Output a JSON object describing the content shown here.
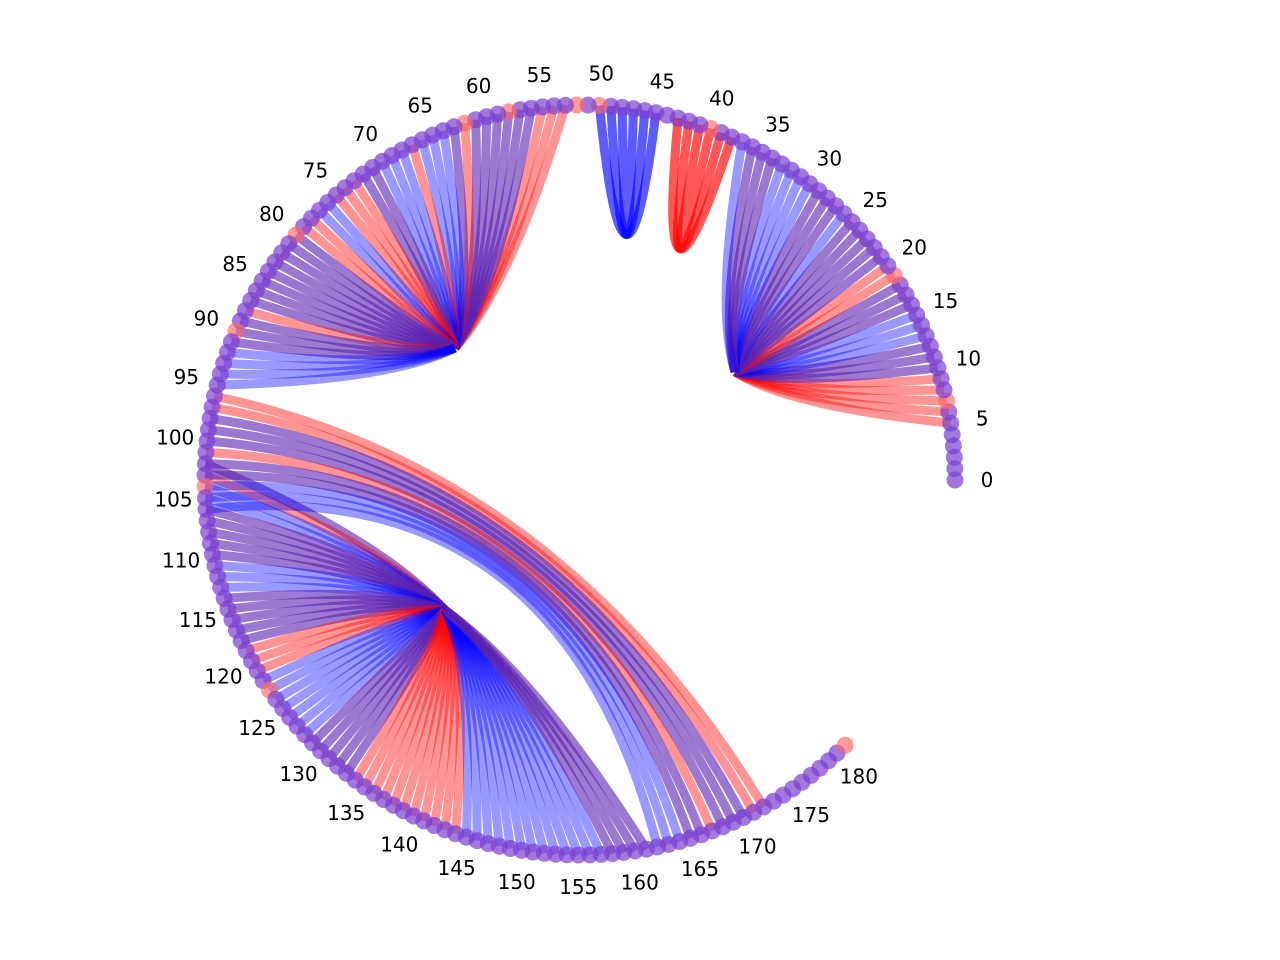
{
  "diagram": {
    "type": "arc-chord",
    "node_count": 182,
    "label_step": 5,
    "tick_labels": [
      "0",
      "5",
      "10",
      "15",
      "20",
      "25",
      "30",
      "35",
      "40",
      "45",
      "50",
      "55",
      "60",
      "65",
      "70",
      "75",
      "80",
      "85",
      "90",
      "95",
      "100",
      "105",
      "110",
      "115",
      "120",
      "125",
      "130",
      "135",
      "140",
      "145",
      "150",
      "155",
      "160",
      "165",
      "170",
      "175",
      "180"
    ],
    "colors": {
      "red": "#ff0000",
      "blue": "#0000ff",
      "node_purple": "#7b3fd0",
      "node_red": "#ff6666"
    },
    "hubs": {
      "upper_left": {
        "sources": [
          53,
          54,
          55,
          56,
          57,
          58,
          59,
          60,
          61,
          62,
          63,
          64,
          65,
          66,
          67,
          68,
          69,
          70,
          71,
          72,
          73,
          74,
          75,
          76,
          77,
          78,
          79,
          80,
          81,
          82,
          83,
          84,
          85,
          86,
          87,
          88,
          89,
          90,
          91,
          92,
          93,
          94,
          95
        ],
        "colors": [
          "red",
          "red",
          "red",
          "purple",
          "purple",
          "purple",
          "purple",
          "purple",
          "purple",
          "red",
          "purple",
          "blue",
          "blue",
          "blue",
          "red",
          "blue",
          "blue",
          "blue",
          "purple",
          "purple",
          "red",
          "red",
          "red",
          "blue",
          "blue",
          "red",
          "red",
          "purple",
          "purple",
          "purple",
          "purple",
          "purple",
          "purple",
          "purple",
          "purple",
          "red",
          "purple",
          "purple",
          "purple",
          "blue",
          "blue",
          "blue",
          "blue"
        ]
      },
      "upper_right": {
        "sources": [
          5,
          6,
          7,
          8,
          9,
          10,
          11,
          12,
          13,
          14,
          15,
          16,
          17,
          18,
          19,
          20,
          21,
          22,
          23,
          24,
          25,
          26,
          27,
          28,
          29,
          30,
          31,
          32,
          33,
          34,
          35,
          36,
          37
        ],
        "colors": [
          "red",
          "red",
          "red",
          "red",
          "red",
          "purple",
          "purple",
          "purple",
          "blue",
          "blue",
          "blue",
          "purple",
          "purple",
          "purple",
          "red",
          "red",
          "purple",
          "purple",
          "purple",
          "purple",
          "purple",
          "blue",
          "purple",
          "purple",
          "purple",
          "blue",
          "blue",
          "blue",
          "blue",
          "purple",
          "purple",
          "purple",
          "blue"
        ]
      },
      "top_loop_blue": {
        "sources": [
          45,
          46,
          47,
          48,
          49,
          50
        ]
      },
      "top_loop_red": {
        "sources": [
          38,
          39,
          40,
          41,
          42,
          43
        ]
      },
      "lower": {
        "sources": [
          102,
          103,
          104,
          105,
          106,
          107,
          108,
          109,
          110,
          111,
          112,
          113,
          114,
          115,
          116,
          117,
          118,
          119,
          120,
          121,
          122,
          123,
          124,
          125,
          126,
          127,
          128,
          129,
          130,
          131,
          132,
          133,
          134,
          135,
          136,
          137,
          138,
          139,
          140,
          141,
          142,
          143,
          144,
          145,
          146,
          147,
          148,
          149,
          150,
          151,
          152,
          153,
          154,
          155,
          156,
          157,
          158,
          159,
          160,
          161
        ],
        "colors": [
          "purple",
          "red",
          "blue",
          "blue",
          "purple",
          "purple",
          "purple",
          "purple",
          "purple",
          "blue",
          "blue",
          "blue",
          "purple",
          "purple",
          "purple",
          "purple",
          "purple",
          "red",
          "red",
          "red",
          "blue",
          "blue",
          "blue",
          "blue",
          "blue",
          "blue",
          "blue",
          "purple",
          "purple",
          "purple",
          "purple",
          "purple",
          "red",
          "red",
          "red",
          "red",
          "red",
          "red",
          "red",
          "red",
          "red",
          "red",
          "red",
          "blue",
          "blue",
          "blue",
          "blue",
          "blue",
          "blue",
          "blue",
          "blue",
          "blue",
          "blue",
          "blue",
          "blue",
          "blue",
          "purple",
          "purple",
          "purple",
          "purple"
        ]
      },
      "long_chords": {
        "pairs": [
          [
            96,
            172
          ],
          [
            97,
            171
          ],
          [
            98,
            170
          ],
          [
            99,
            169
          ],
          [
            100,
            168
          ],
          [
            101,
            167
          ],
          [
            102,
            166
          ],
          [
            103,
            165
          ],
          [
            104,
            164
          ],
          [
            105,
            163
          ],
          [
            106,
            162
          ]
        ],
        "colors": [
          "red",
          "red",
          "purple",
          "purple",
          "purple",
          "red",
          "purple",
          "purple",
          "blue",
          "blue",
          "blue"
        ]
      }
    },
    "red_nodes": [
      7,
      19,
      40,
      50,
      52,
      58,
      62,
      80,
      90,
      104,
      123,
      181
    ]
  }
}
